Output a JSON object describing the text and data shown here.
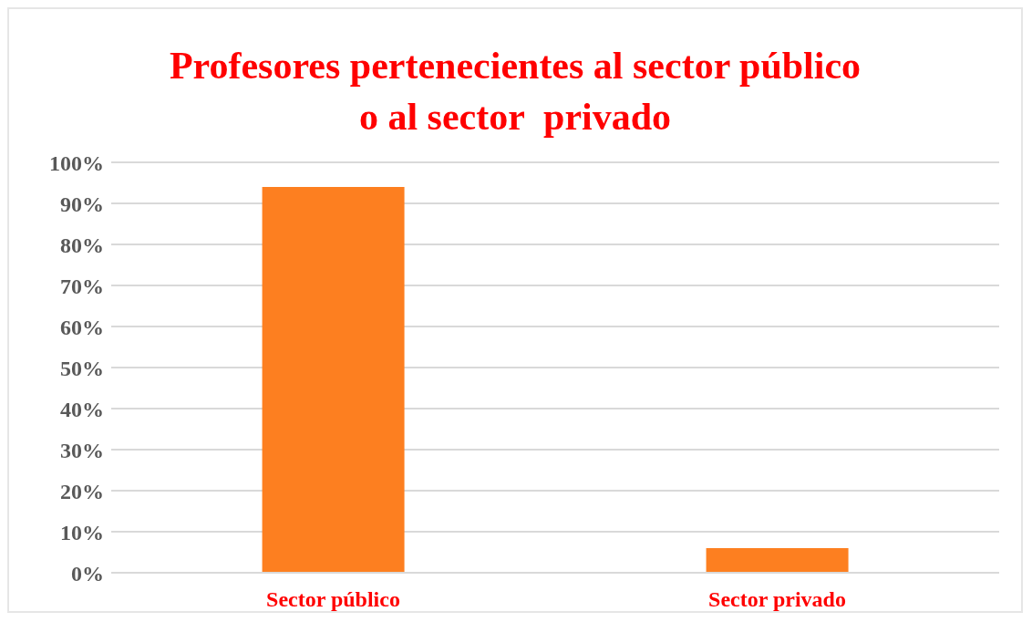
{
  "chart_data": {
    "type": "bar",
    "title": "Profesores pertenecientes al sector público\no al sector  privado",
    "categories": [
      "Sector público",
      "Sector privado"
    ],
    "values": [
      94,
      6
    ],
    "color": "#fd7f20",
    "ylim": [
      0,
      100
    ],
    "yticks": [
      {
        "value": 0,
        "label": "0%"
      },
      {
        "value": 10,
        "label": "10%"
      },
      {
        "value": 20,
        "label": "20%"
      },
      {
        "value": 30,
        "label": "30%"
      },
      {
        "value": 40,
        "label": "40%"
      },
      {
        "value": 50,
        "label": "50%"
      },
      {
        "value": 60,
        "label": "60%"
      },
      {
        "value": 70,
        "label": "70%"
      },
      {
        "value": 80,
        "label": "80%"
      },
      {
        "value": 90,
        "label": "90%"
      },
      {
        "value": 100,
        "label": "100%"
      }
    ],
    "grid": "y"
  }
}
